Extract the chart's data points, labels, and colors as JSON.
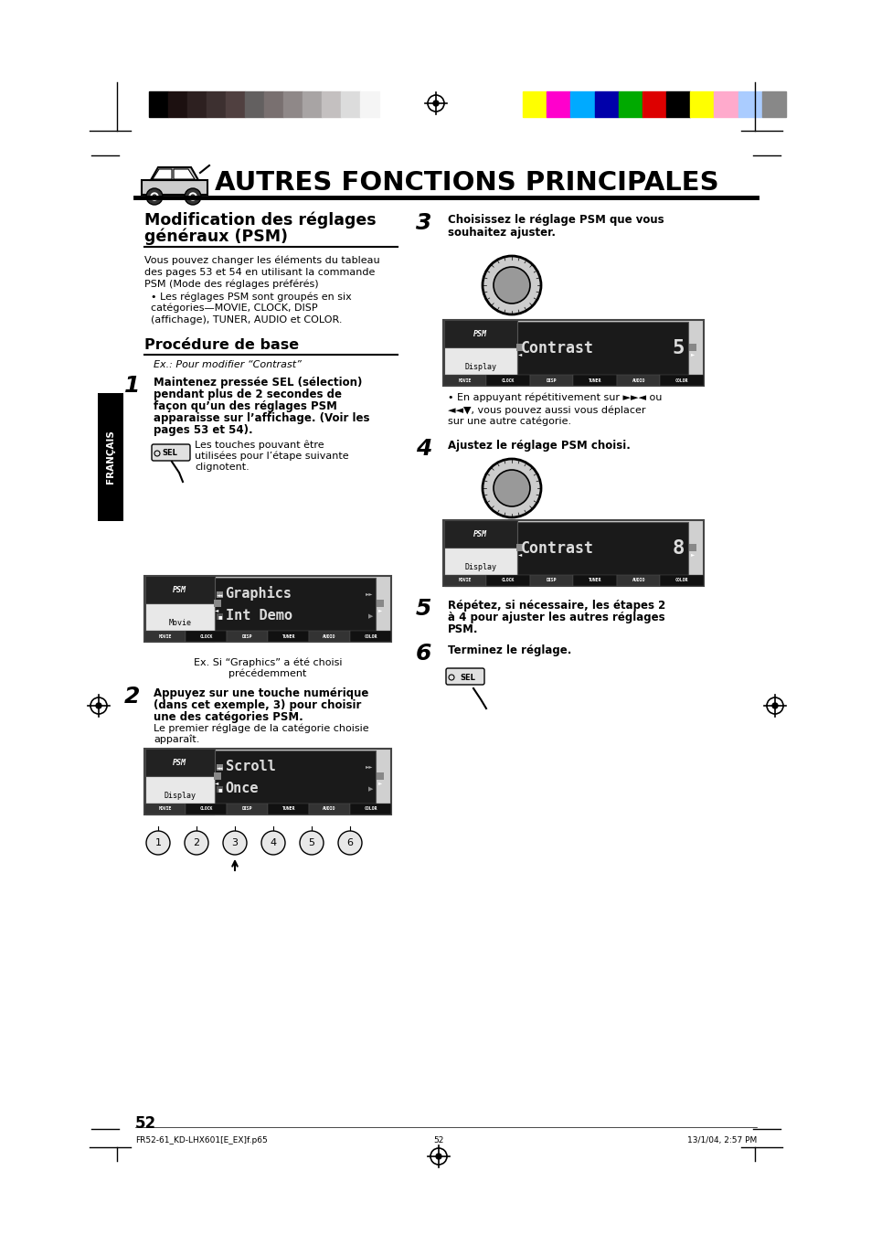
{
  "page_bg": "#ffffff",
  "page_width": 9.54,
  "page_height": 13.51,
  "top_bar_colors_left": [
    "#000000",
    "#1c1010",
    "#2d2020",
    "#3d3030",
    "#504040",
    "#636060",
    "#797070",
    "#8f8888",
    "#a8a4a4",
    "#c4c0c0",
    "#dcdcdc",
    "#f5f5f5"
  ],
  "top_bar_colors_right": [
    "#ffff00",
    "#ff00cc",
    "#00aaff",
    "#0000aa",
    "#00aa00",
    "#dd0000",
    "#000000",
    "#ffff00",
    "#ffaacc",
    "#aaccff",
    "#888888"
  ],
  "main_title": "AUTRES FONCTIONS PRINCIPALES",
  "section_title_1": "Modification des réglages",
  "section_title_2": "généraux (PSM)",
  "body_text_left": [
    "Vous pouvez changer les éléments du tableau",
    "des pages 53 et 54 en utilisant la commande",
    "PSM (Mode des réglages préférés)",
    "  • Les réglages PSM sont groupés en six",
    "  catégories—MOVIE, CLOCK, DISP",
    "  (affichage), TUNER, AUDIO et COLOR."
  ],
  "proc_title": "Procédure de base",
  "proc_ex": "Ex.: Pour modifier “Contrast”",
  "step1_bold": [
    "Maintenez pressée SEL (sélection)",
    "pendant plus de 2 secondes de",
    "façon qu’un des réglages PSM",
    "apparaisse sur l’affichage. (Voir les",
    "pages 53 et 54)."
  ],
  "step1_note": [
    "Les touches pouvant être",
    "utilisées pour l’étape suivante",
    "clignotent."
  ],
  "display1_note_1": "Ex. Si “Graphics” a été choisi",
  "display1_note_2": "précédemment",
  "step2_bold": [
    "Appuyez sur une touche numérique",
    "(dans cet exemple, 3) pour choisir",
    "une des catégories PSM."
  ],
  "step2_note": "Le premier réglage de la catégorie choisie\napparaît.",
  "step3_bold": [
    "Choisissez le réglage PSM que vous",
    "souhaitez ajuster."
  ],
  "step3_note": [
    "• En appuyant répétitivement sur ►►◄ ou",
    "◄◄▼, vous pouvez aussi vous déplacer",
    "sur une autre catégorie."
  ],
  "step4_bold": "Ajustez le réglage PSM choisi.",
  "step5_bold": [
    "Répétez, si nécessaire, les étapes 2",
    "à 4 pour ajuster les autres réglages",
    "PSM."
  ],
  "step6_bold": "Terminez le réglage.",
  "display_bottom": "MOVIE CLOCK  DISP  TUNER AUDIO COLOR",
  "page_number": "52",
  "footer_left": "FR52-61_KD-LHX601[E_EX]f.p65",
  "footer_center": "52",
  "footer_right": "13/1/04, 2:57 PM",
  "sidebar_text": "FRANÇAIS"
}
